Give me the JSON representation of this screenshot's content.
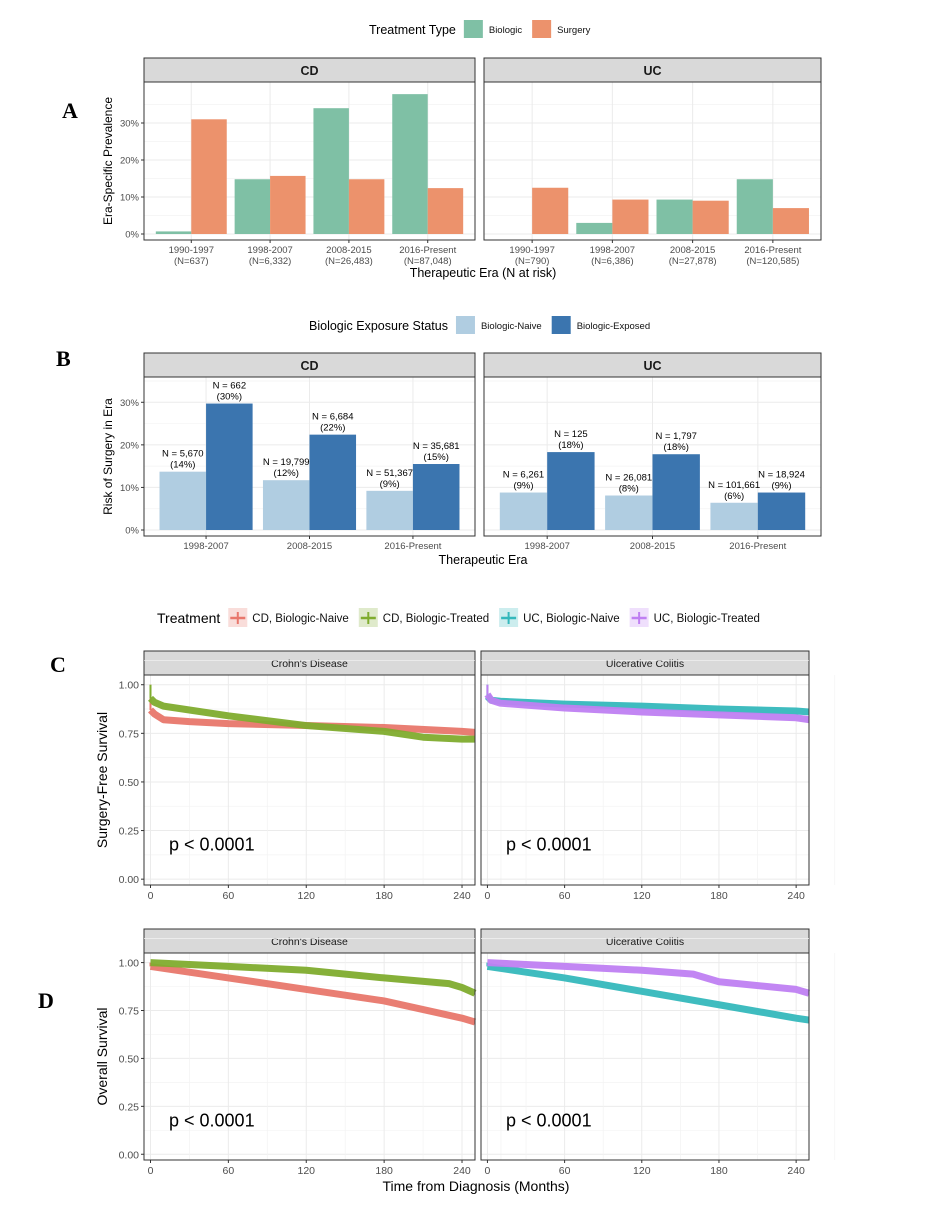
{
  "chart_data": [
    {
      "id": "A",
      "type": "bar",
      "panel_letter": "A",
      "legend": {
        "title": "Treatment Type",
        "placement": "top",
        "entries": [
          {
            "name": "Biologic",
            "color": "#7fc0a5"
          },
          {
            "name": "Surgery",
            "color": "#ec926c"
          }
        ]
      },
      "ylabel": "Era-Specific Prevalence",
      "xlabel": "Therapeutic Era (N at risk)",
      "ylim": [
        0,
        40
      ],
      "yticks": [
        0,
        10,
        20,
        30
      ],
      "ytick_labels": [
        "0%",
        "10%",
        "20%",
        "30%"
      ],
      "facets": [
        {
          "title": "CD",
          "categories": [
            "1990-1997",
            "1998-2007",
            "2008-2015",
            "2016-Present"
          ],
          "category_n": [
            "(N=637)",
            "(N=6,332)",
            "(N=26,483)",
            "(N=87,048)"
          ],
          "series": [
            {
              "name": "Biologic",
              "values": [
                0.7,
                14.8,
                34.0,
                37.8
              ]
            },
            {
              "name": "Surgery",
              "values": [
                31.0,
                15.7,
                14.8,
                12.4
              ]
            }
          ]
        },
        {
          "title": "UC",
          "categories": [
            "1990-1997",
            "1998-2007",
            "2008-2015",
            "2016-Present"
          ],
          "category_n": [
            "(N=790)",
            "(N=6,386)",
            "(N=27,878)",
            "(N=120,585)"
          ],
          "series": [
            {
              "name": "Biologic",
              "values": [
                0,
                3.0,
                9.3,
                14.8
              ]
            },
            {
              "name": "Surgery",
              "values": [
                12.5,
                9.3,
                9.0,
                7.0
              ]
            }
          ]
        }
      ]
    },
    {
      "id": "B",
      "type": "bar",
      "panel_letter": "B",
      "legend": {
        "title": "Biologic Exposure Status",
        "placement": "top",
        "entries": [
          {
            "name": "Biologic-Naive",
            "color": "#b0cde1"
          },
          {
            "name": "Biologic-Exposed",
            "color": "#3b75af"
          }
        ]
      },
      "ylabel": "Risk of Surgery in Era",
      "xlabel": "Therapeutic Era",
      "ylim": [
        0,
        35
      ],
      "yticks": [
        0,
        10,
        20,
        30
      ],
      "ytick_labels": [
        "0%",
        "10%",
        "20%",
        "30%"
      ],
      "facets": [
        {
          "title": "CD",
          "categories": [
            "1998-2007",
            "2008-2015",
            "2016-Present"
          ],
          "series": [
            {
              "name": "Biologic-Naive",
              "values": [
                13.7,
                11.7,
                9.2
              ],
              "labels_n": [
                "N = 5,670",
                "N = 19,799",
                "N = 51,367"
              ],
              "labels_pct": [
                "(14%)",
                "(12%)",
                "(9%)"
              ]
            },
            {
              "name": "Biologic-Exposed",
              "values": [
                29.7,
                22.4,
                15.5
              ],
              "labels_n": [
                "N = 662",
                "N = 6,684",
                "N = 35,681"
              ],
              "labels_pct": [
                "(30%)",
                "(22%)",
                "(15%)"
              ]
            }
          ]
        },
        {
          "title": "UC",
          "categories": [
            "1998-2007",
            "2008-2015",
            "2016-Present"
          ],
          "series": [
            {
              "name": "Biologic-Naive",
              "values": [
                8.8,
                8.1,
                6.4
              ],
              "labels_n": [
                "N = 6,261",
                "N = 26,081",
                "N = 101,661"
              ],
              "labels_pct": [
                "(9%)",
                "(8%)",
                "(6%)"
              ]
            },
            {
              "name": "Biologic-Exposed",
              "values": [
                18.3,
                17.8,
                8.8
              ],
              "labels_n": [
                "N = 125",
                "N = 1,797",
                "N = 18,924"
              ],
              "labels_pct": [
                "(18%)",
                "(18%)",
                "(9%)"
              ]
            }
          ]
        }
      ]
    },
    {
      "id": "C",
      "type": "line",
      "panel_letter": "C",
      "legend": {
        "title": "Treatment",
        "placement": "top",
        "entries": [
          {
            "name": "CD, Biologic-Naive",
            "color": "#e8776c"
          },
          {
            "name": "CD, Biologic-Treated",
            "color": "#7fac2e"
          },
          {
            "name": "UC, Biologic-Naive",
            "color": "#35b8bc"
          },
          {
            "name": "UC, Biologic-Treated",
            "color": "#bf7ff2"
          }
        ]
      },
      "ylabel": "Surgery-Free Survival",
      "xlabel": "",
      "xlim": [
        -5,
        250
      ],
      "xticks": [
        0,
        60,
        120,
        180,
        240
      ],
      "ylim": [
        -0.03,
        1.05
      ],
      "yticks": [
        0,
        0.25,
        0.5,
        0.75,
        1.0
      ],
      "ytick_labels": [
        "0.00",
        "0.25",
        "0.50",
        "0.75",
        "1.00"
      ],
      "facets": [
        {
          "title": "Crohn's Disease",
          "annotation": "p < 0.0001",
          "series": [
            {
              "name": "CD, Biologic-Naive",
              "x": [
                0,
                3,
                10,
                30,
                60,
                120,
                180,
                240,
                250
              ],
              "y": [
                0.87,
                0.85,
                0.82,
                0.81,
                0.8,
                0.79,
                0.78,
                0.76,
                0.755
              ]
            },
            {
              "name": "CD, Biologic-Treated",
              "x": [
                0,
                3,
                10,
                30,
                60,
                120,
                180,
                210,
                240,
                250
              ],
              "y": [
                0.93,
                0.91,
                0.89,
                0.87,
                0.84,
                0.79,
                0.76,
                0.73,
                0.72,
                0.72
              ]
            }
          ]
        },
        {
          "title": "Ulcerative Colitis",
          "annotation": "p < 0.0001",
          "series": [
            {
              "name": "UC, Biologic-Naive",
              "x": [
                0,
                3,
                10,
                60,
                120,
                180,
                240,
                250
              ],
              "y": [
                0.94,
                0.92,
                0.915,
                0.9,
                0.89,
                0.875,
                0.865,
                0.86
              ]
            },
            {
              "name": "UC, Biologic-Treated",
              "x": [
                0,
                3,
                10,
                60,
                120,
                180,
                240,
                250
              ],
              "y": [
                0.95,
                0.92,
                0.905,
                0.88,
                0.86,
                0.845,
                0.83,
                0.82
              ]
            }
          ]
        }
      ]
    },
    {
      "id": "D",
      "type": "line",
      "panel_letter": "D",
      "ylabel": "Overall Survival",
      "xlabel": "Time from Diagnosis (Months)",
      "xlim": [
        -5,
        250
      ],
      "xticks": [
        0,
        60,
        120,
        180,
        240
      ],
      "ylim": [
        -0.03,
        1.05
      ],
      "yticks": [
        0,
        0.25,
        0.5,
        0.75,
        1.0
      ],
      "ytick_labels": [
        "0.00",
        "0.25",
        "0.50",
        "0.75",
        "1.00"
      ],
      "facets": [
        {
          "title": "Crohn's Disease",
          "annotation": "p < 0.0001",
          "series": [
            {
              "name": "CD, Biologic-Naive",
              "x": [
                0,
                60,
                120,
                180,
                240,
                250
              ],
              "y": [
                0.98,
                0.92,
                0.86,
                0.8,
                0.71,
                0.69
              ]
            },
            {
              "name": "CD, Biologic-Treated",
              "x": [
                0,
                60,
                120,
                180,
                230,
                240,
                250
              ],
              "y": [
                1.0,
                0.98,
                0.96,
                0.92,
                0.89,
                0.87,
                0.84
              ]
            }
          ]
        },
        {
          "title": "Ulcerative Colitis",
          "annotation": "p < 0.0001",
          "series": [
            {
              "name": "UC, Biologic-Naive",
              "x": [
                0,
                60,
                120,
                180,
                240,
                250
              ],
              "y": [
                0.98,
                0.92,
                0.85,
                0.78,
                0.71,
                0.7
              ]
            },
            {
              "name": "UC, Biologic-Treated",
              "x": [
                0,
                60,
                120,
                160,
                180,
                240,
                250
              ],
              "y": [
                1.0,
                0.98,
                0.96,
                0.94,
                0.9,
                0.86,
                0.84
              ]
            }
          ]
        }
      ]
    }
  ]
}
